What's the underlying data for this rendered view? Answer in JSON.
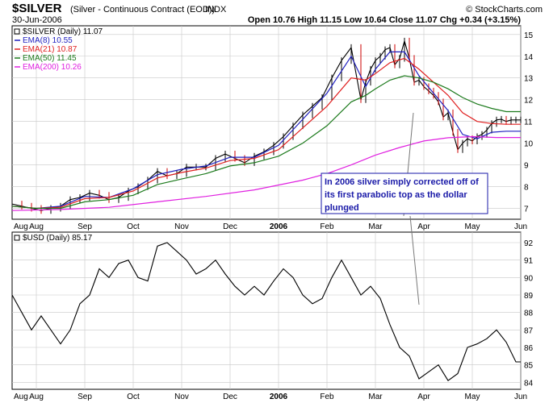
{
  "header": {
    "symbol": "$SILVER",
    "name": "(Silver - Continuous Contract (EOD))",
    "exchange": "INDX",
    "date": "30-Jun-2006",
    "source": "© StockCharts.com",
    "ohlc_text": "Open 10.76 High 11.15 Low 10.64 Close 11.07 Chg +0.34 (+3.15%)"
  },
  "annotation": {
    "lines": [
      "In 2006 silver simply corrected off of",
      "its first parabolic top as the dollar",
      "plunged"
    ],
    "color": "#1a1aa8"
  },
  "colors": {
    "price": "#000000",
    "down_bar": "#cc0000",
    "ema8": "#1f1fbf",
    "ema21": "#e02020",
    "ema50": "#1c7a1c",
    "ema200": "#e020e0",
    "grid": "#c8c8c8"
  },
  "chart_data": [
    {
      "type": "line",
      "title": "$SILVER (Daily) 11.07",
      "y_ticks": [
        7,
        8,
        9,
        10,
        11,
        12,
        13,
        14,
        15
      ],
      "ylim": [
        6.5,
        15.4
      ],
      "x_tick_labels": [
        "Aug",
        "Sep",
        "Oct",
        "Nov",
        "Dec",
        "2006",
        "Feb",
        "Mar",
        "Apr",
        "May",
        "Jun"
      ],
      "x_range_months": [
        7.5,
        18.0
      ],
      "grid": true,
      "legend_position": "top-left",
      "series": [
        {
          "name": "$SILVER (Daily) 11.07",
          "legend": "$SILVER (Daily) 11.07",
          "x": [
            7.5,
            7.7,
            7.9,
            8.1,
            8.3,
            8.5,
            8.7,
            8.9,
            9.1,
            9.3,
            9.5,
            9.7,
            9.9,
            10.1,
            10.3,
            10.5,
            10.7,
            10.9,
            11.1,
            11.3,
            11.5,
            11.7,
            11.9,
            12.1,
            12.3,
            12.5,
            12.7,
            12.9,
            13.1,
            13.3,
            13.5,
            13.7,
            13.9,
            14.1,
            14.3,
            14.5,
            14.7,
            14.8,
            14.9,
            15.0,
            15.1,
            15.2,
            15.3,
            15.4,
            15.5,
            15.6,
            15.7,
            15.8,
            15.9,
            16.0,
            16.1,
            16.2,
            16.3,
            16.4,
            16.5,
            16.6,
            16.7,
            16.8,
            16.9,
            17.0,
            17.1,
            17.2,
            17.3,
            17.4,
            17.5,
            17.6,
            17.7,
            17.8,
            17.9,
            18.0
          ],
          "y": [
            7.2,
            7.1,
            7.0,
            6.9,
            7.0,
            7.1,
            7.4,
            7.5,
            7.7,
            7.6,
            7.4,
            7.5,
            7.8,
            8.0,
            8.3,
            8.7,
            8.5,
            8.6,
            8.9,
            8.9,
            8.9,
            9.3,
            9.5,
            9.3,
            9.1,
            9.4,
            9.6,
            9.9,
            10.3,
            10.8,
            11.3,
            11.7,
            12.1,
            13.0,
            13.8,
            14.4,
            12.0,
            12.8,
            13.4,
            13.8,
            14.0,
            14.3,
            14.4,
            13.6,
            13.9,
            14.7,
            13.9,
            12.8,
            12.9,
            12.6,
            12.4,
            12.2,
            11.9,
            11.2,
            11.4,
            10.5,
            9.7,
            10.0,
            10.2,
            10.1,
            10.3,
            10.4,
            10.6,
            10.9,
            11.07,
            11.1,
            11.0,
            11.07,
            11.07,
            11.07
          ]
        },
        {
          "name": "EMA(8)",
          "legend": "EMA(8) 10.55",
          "x": [
            7.5,
            8.0,
            8.5,
            9.0,
            9.5,
            10.0,
            10.5,
            11.0,
            11.5,
            12.0,
            12.5,
            13.0,
            13.5,
            14.0,
            14.5,
            14.8,
            15.0,
            15.3,
            15.6,
            15.9,
            16.2,
            16.5,
            16.8,
            17.1,
            17.4,
            17.7,
            18.0
          ],
          "y": [
            7.1,
            7.0,
            7.1,
            7.55,
            7.5,
            7.9,
            8.55,
            8.8,
            8.95,
            9.35,
            9.35,
            9.9,
            11.1,
            12.3,
            14.0,
            12.6,
            13.4,
            14.2,
            14.2,
            13.1,
            12.3,
            11.5,
            10.4,
            10.2,
            10.5,
            10.55,
            10.55
          ]
        },
        {
          "name": "EMA(21)",
          "legend": "EMA(21) 10.87",
          "x": [
            7.5,
            8.0,
            8.5,
            9.0,
            9.5,
            10.0,
            10.5,
            11.0,
            11.5,
            12.0,
            12.5,
            13.0,
            13.5,
            14.0,
            14.5,
            14.8,
            15.0,
            15.3,
            15.6,
            15.9,
            16.2,
            16.5,
            16.8,
            17.1,
            17.4,
            17.7,
            18.0
          ],
          "y": [
            7.1,
            7.0,
            7.05,
            7.45,
            7.5,
            7.8,
            8.4,
            8.65,
            8.85,
            9.2,
            9.3,
            9.7,
            10.7,
            11.7,
            13.0,
            12.9,
            13.2,
            13.7,
            13.9,
            13.4,
            12.8,
            12.2,
            11.4,
            11.0,
            10.9,
            10.87,
            10.87
          ]
        },
        {
          "name": "EMA(50)",
          "legend": "EMA(50) 11.45",
          "x": [
            7.5,
            8.0,
            8.5,
            9.0,
            9.5,
            10.0,
            10.5,
            11.0,
            11.5,
            12.0,
            12.5,
            13.0,
            13.5,
            14.0,
            14.5,
            14.8,
            15.0,
            15.3,
            15.6,
            15.9,
            16.2,
            16.5,
            16.8,
            17.1,
            17.4,
            17.7,
            18.0
          ],
          "y": [
            7.1,
            7.0,
            7.0,
            7.3,
            7.4,
            7.6,
            8.1,
            8.35,
            8.6,
            8.95,
            9.1,
            9.4,
            10.0,
            10.8,
            11.9,
            12.2,
            12.5,
            12.9,
            13.1,
            13.0,
            12.8,
            12.5,
            12.1,
            11.8,
            11.6,
            11.45,
            11.45
          ]
        },
        {
          "name": "EMA(200)",
          "legend": "EMA(200) 10.26",
          "x": [
            7.5,
            8.5,
            9.5,
            10.5,
            11.5,
            12.5,
            13.5,
            14.0,
            14.5,
            15.0,
            15.5,
            16.0,
            16.5,
            17.0,
            17.5,
            18.0
          ],
          "y": [
            6.9,
            6.95,
            7.05,
            7.3,
            7.55,
            7.85,
            8.3,
            8.6,
            9.0,
            9.45,
            9.8,
            10.1,
            10.25,
            10.3,
            10.26,
            10.26
          ]
        }
      ]
    },
    {
      "type": "line",
      "title": "$USD (Daily) 85.17",
      "y_ticks": [
        84,
        85,
        86,
        87,
        88,
        89,
        90,
        91,
        92
      ],
      "ylim": [
        83.6,
        92.6
      ],
      "x_tick_labels": [
        "Aug",
        "Sep",
        "Oct",
        "Nov",
        "Dec",
        "2006",
        "Feb",
        "Mar",
        "Apr",
        "May",
        "Jun"
      ],
      "x_range_months": [
        7.5,
        18.0
      ],
      "grid": true,
      "legend_position": "top-left",
      "series": [
        {
          "name": "$USD (Daily) 85.17",
          "legend": "$USD (Daily) 85.17",
          "x": [
            7.5,
            7.7,
            7.9,
            8.1,
            8.3,
            8.5,
            8.7,
            8.9,
            9.1,
            9.3,
            9.5,
            9.7,
            9.9,
            10.1,
            10.3,
            10.5,
            10.7,
            10.9,
            11.1,
            11.3,
            11.5,
            11.7,
            11.9,
            12.1,
            12.3,
            12.5,
            12.7,
            12.9,
            13.1,
            13.3,
            13.5,
            13.7,
            13.9,
            14.1,
            14.3,
            14.5,
            14.7,
            14.9,
            15.1,
            15.3,
            15.5,
            15.7,
            15.9,
            16.1,
            16.3,
            16.5,
            16.7,
            16.9,
            17.1,
            17.3,
            17.5,
            17.7,
            17.9,
            18.0
          ],
          "y": [
            89.0,
            88.0,
            87.0,
            87.8,
            87.0,
            86.2,
            87.0,
            88.5,
            89.0,
            90.5,
            90.0,
            90.8,
            91.0,
            90.0,
            89.8,
            91.8,
            92.0,
            91.5,
            91.0,
            90.2,
            90.5,
            91.0,
            90.2,
            89.5,
            89.0,
            89.5,
            89.0,
            89.8,
            90.5,
            90.0,
            89.0,
            88.5,
            88.8,
            90.0,
            91.0,
            90.0,
            89.0,
            89.5,
            88.8,
            87.3,
            86.0,
            85.5,
            84.2,
            84.6,
            85.0,
            84.1,
            84.5,
            86.0,
            86.2,
            86.5,
            87.0,
            86.3,
            85.17,
            85.17
          ]
        }
      ]
    }
  ]
}
